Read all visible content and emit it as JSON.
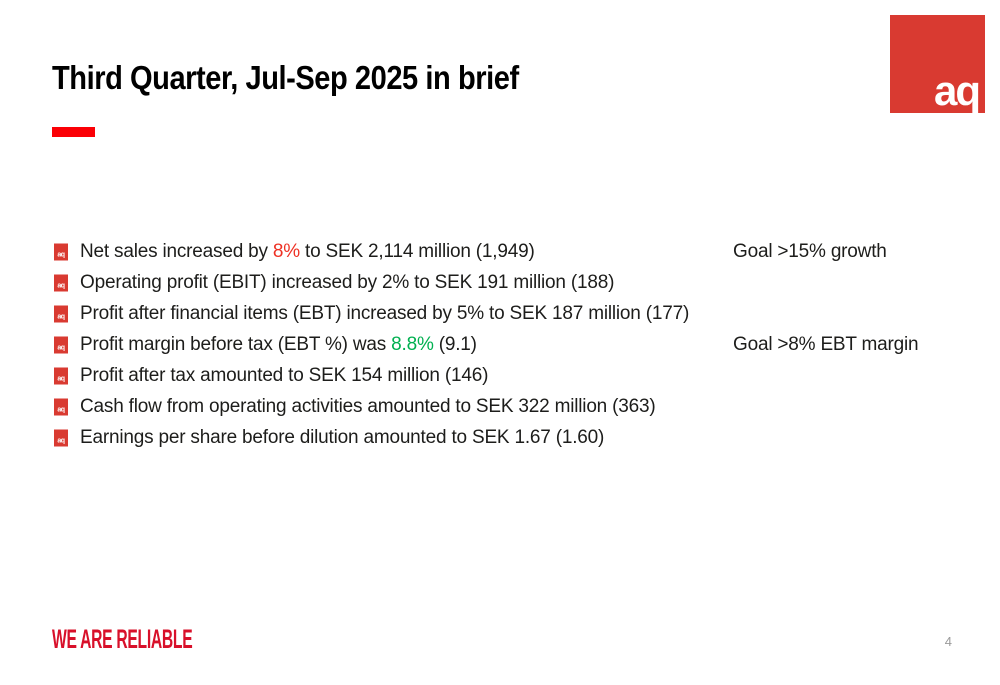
{
  "slide": {
    "title": "Third Quarter, Jul-Sep 2025 in brief",
    "logo_text": "aq",
    "footer_tagline": "WE ARE RELIABLE",
    "page_number": "4"
  },
  "colors": {
    "accent_red": "#ee3124",
    "positive_green": "#00b050",
    "logo_red": "#d93a31",
    "dash_red": "#fb0006",
    "footer_red": "#d8102a",
    "text_black": "#1d1d1b",
    "page_number_gray": "#9a9a9a"
  },
  "bullets": [
    {
      "segments": [
        {
          "text": "Net sales increased by ",
          "color": "default"
        },
        {
          "text": "8%",
          "color": "accent_red"
        },
        {
          "text": " to SEK 2,114 million (1,949)",
          "color": "default"
        }
      ],
      "goal": "Goal >15% growth"
    },
    {
      "segments": [
        {
          "text": "Operating profit (EBIT) increased by 2% to SEK 191 million (188)",
          "color": "default"
        }
      ],
      "goal": ""
    },
    {
      "segments": [
        {
          "text": "Profit after financial items (EBT) increased by 5% to SEK 187 million (177)",
          "color": "default"
        }
      ],
      "goal": ""
    },
    {
      "segments": [
        {
          "text": "Profit margin before tax (EBT %) was ",
          "color": "default"
        },
        {
          "text": "8.8%",
          "color": "positive_green"
        },
        {
          "text": " (9.1)",
          "color": "default"
        }
      ],
      "goal": "Goal >8% EBT margin"
    },
    {
      "segments": [
        {
          "text": "Profit after tax amounted to SEK 154 million (146)",
          "color": "default"
        }
      ],
      "goal": ""
    },
    {
      "segments": [
        {
          "text": "Cash flow from operating activities amounted to SEK 322 million (363)",
          "color": "default"
        }
      ],
      "goal": ""
    },
    {
      "segments": [
        {
          "text": "Earnings per share before dilution amounted to SEK 1.67 (1.60)",
          "color": "default"
        }
      ],
      "goal": ""
    }
  ]
}
